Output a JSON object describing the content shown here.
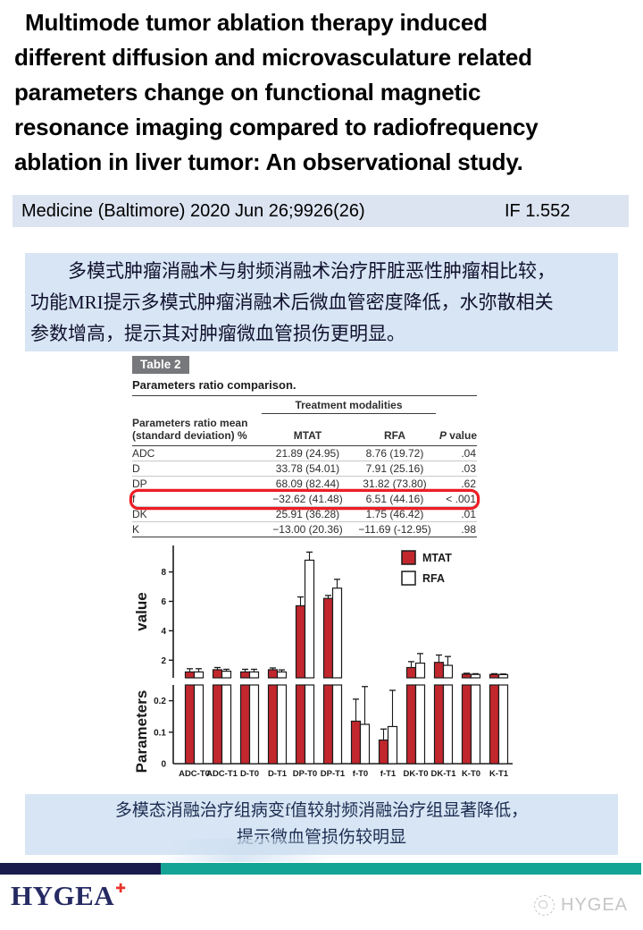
{
  "title": {
    "lines": [
      "Multimode tumor ablation therapy induced",
      "different diffusion and microvasculature related",
      "parameters change on functional magnetic",
      "resonance imaging compared to radiofrequency",
      "ablation in liver tumor: An observational study."
    ]
  },
  "journal": {
    "citation": "Medicine (Baltimore) 2020 Jun 26;9926(26)",
    "impact_factor": "IF 1.552",
    "bg_color": "#dce4f1"
  },
  "summary_box": {
    "bg_color": "#d7e5f4",
    "lines": [
      "多模式肿瘤消融术与射频消融术治疗肝脏恶性肿瘤相比较，",
      "功能MRI提示多模式肿瘤消融术后微血管密度降低，水弥散相关",
      "参数增高，提示其对肿瘤微血管损伤更明显。"
    ]
  },
  "table": {
    "badge": "Table 2",
    "caption": "Parameters ratio comparison.",
    "group_header": "Treatment modalities",
    "col1_header_line1": "Parameters ratio mean",
    "col1_header_line2": "(standard deviation) %",
    "col_mtat": "MTAT",
    "col_rfa": "RFA",
    "col_p_italic": "P",
    "col_p_rest": " value",
    "highlight_color": "#ee1c25",
    "rows": [
      {
        "param": "ADC",
        "mtat": "21.89 (24.95)",
        "rfa": "8.76 (19.72)",
        "p": ".04"
      },
      {
        "param": "D",
        "mtat": "33.78 (54.01)",
        "rfa": "7.91 (25.16)",
        "p": ".03"
      },
      {
        "param": "DP",
        "mtat": "68.09 (82.44)",
        "rfa": "31.82 (73.80)",
        "p": ".62"
      },
      {
        "param": "f",
        "mtat": "−32.62 (41.48)",
        "rfa": "6.51 (44.16)",
        "p": "< .001",
        "highlighted": true
      },
      {
        "param": "DK",
        "mtat": "25.91 (36.28)",
        "rfa": "1.75 (46.42)",
        "p": ".01"
      },
      {
        "param": "K",
        "mtat": "−13.00 (20.36)",
        "rfa": "−11.69 (-12.95)",
        "p": ".98"
      }
    ]
  },
  "chart_data": {
    "type": "bar",
    "broken_axis": true,
    "categories": [
      "ADC-T0",
      "ADC-T1",
      "D-T0",
      "D-T1",
      "DP-T0",
      "DP-T1",
      "f-T0",
      "f-T1",
      "DK-T0",
      "DK-T1",
      "K-T0",
      "K-T1"
    ],
    "series": [
      {
        "name": "MTAT",
        "color": "#c1272d",
        "values": [
          1.2,
          1.35,
          1.2,
          1.35,
          5.7,
          6.2,
          0.135,
          0.075,
          1.5,
          1.85,
          1.05,
          1.03
        ],
        "errors": [
          0.22,
          0.15,
          0.18,
          0.12,
          0.6,
          0.2,
          0.07,
          0.035,
          0.4,
          0.5,
          0.06,
          0.05
        ]
      },
      {
        "name": "RFA",
        "color": "#ffffff",
        "values": [
          1.2,
          1.25,
          1.2,
          1.2,
          8.8,
          6.9,
          0.125,
          0.118,
          1.8,
          1.65,
          1.03,
          1.02
        ],
        "errors": [
          0.22,
          0.13,
          0.18,
          0.14,
          0.55,
          0.6,
          0.12,
          0.115,
          0.65,
          0.6,
          0.05,
          0.04
        ]
      }
    ],
    "ylabel_upper": "value",
    "ylabel_lower": "Parameters",
    "upper_axis": {
      "min": 0.8,
      "max": 9.8,
      "ticks": [
        2,
        4,
        6,
        8
      ]
    },
    "lower_axis": {
      "min": 0,
      "max": 0.25,
      "ticks": [
        0,
        0.1,
        0.2
      ]
    },
    "legend_position": "top-right",
    "grid": false
  },
  "figure_caption": {
    "bg_color": "#d7e5f4",
    "lines": [
      "多模态消融治疗组病变f值较射频消融治疗组显著降低，",
      "提示微血管损伤较明显"
    ]
  },
  "footer": {
    "bar_navy_color": "#1b1c4e",
    "bar_teal_color": "#14a496",
    "logo_text": "HYGEA",
    "logo_color": "#252a63",
    "cross_color": "#e8342c",
    "watermark_text": "HYGEA",
    "watermark_color": "#c6c6c6"
  }
}
